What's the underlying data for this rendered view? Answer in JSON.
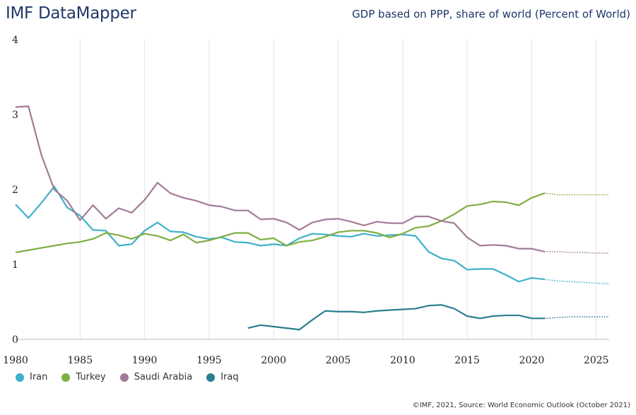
{
  "header": {
    "brand": "IMF DataMapper",
    "title": "GDP based on PPP, share of world (Percent of World)"
  },
  "footer": {
    "credit": "©IMF, 2021, Source: World Economic Outlook (October 2021)"
  },
  "chart_data": {
    "type": "line",
    "title": "GDP based on PPP, share of world (Percent of World)",
    "xlim": [
      1980,
      2026
    ],
    "ylim": [
      0,
      4
    ],
    "x_ticks": [
      1980,
      1985,
      1990,
      1995,
      2000,
      2005,
      2010,
      2015,
      2020,
      2025
    ],
    "y_ticks": [
      0,
      1,
      2,
      3,
      4
    ],
    "grid": "vertical",
    "legend_position": "bottom-left",
    "projection_start": 2021,
    "series": [
      {
        "name": "Iran",
        "color": "#3fb1c9",
        "start": 1980,
        "values": [
          1.8,
          1.62,
          1.82,
          2.04,
          1.76,
          1.65,
          1.46,
          1.45,
          1.25,
          1.27,
          1.45,
          1.56,
          1.44,
          1.43,
          1.37,
          1.34,
          1.36,
          1.3,
          1.29,
          1.25,
          1.27,
          1.25,
          1.35,
          1.41,
          1.4,
          1.38,
          1.37,
          1.41,
          1.38,
          1.39,
          1.4,
          1.38,
          1.17,
          1.08,
          1.05,
          0.93,
          0.94,
          0.94,
          0.86,
          0.77,
          0.82,
          0.8,
          0.78,
          0.77,
          0.76,
          0.75,
          0.74
        ]
      },
      {
        "name": "Turkey",
        "color": "#7fae42",
        "start": 1980,
        "values": [
          1.16,
          1.19,
          1.22,
          1.25,
          1.28,
          1.3,
          1.34,
          1.42,
          1.39,
          1.34,
          1.41,
          1.38,
          1.32,
          1.4,
          1.29,
          1.32,
          1.37,
          1.42,
          1.42,
          1.33,
          1.35,
          1.25,
          1.3,
          1.32,
          1.37,
          1.43,
          1.45,
          1.45,
          1.42,
          1.36,
          1.41,
          1.49,
          1.51,
          1.58,
          1.67,
          1.78,
          1.8,
          1.84,
          1.83,
          1.79,
          1.89,
          1.95,
          1.93,
          1.93,
          1.93,
          1.93,
          1.93
        ]
      },
      {
        "name": "Saudi Arabia",
        "color": "#a27b98",
        "start": 1980,
        "values": [
          3.1,
          3.11,
          2.46,
          2.0,
          1.85,
          1.59,
          1.79,
          1.61,
          1.75,
          1.69,
          1.86,
          2.09,
          1.95,
          1.89,
          1.85,
          1.79,
          1.77,
          1.72,
          1.72,
          1.6,
          1.61,
          1.56,
          1.46,
          1.56,
          1.6,
          1.61,
          1.57,
          1.52,
          1.57,
          1.55,
          1.55,
          1.64,
          1.64,
          1.58,
          1.55,
          1.36,
          1.25,
          1.26,
          1.25,
          1.21,
          1.21,
          1.17,
          1.17,
          1.16,
          1.16,
          1.15,
          1.15
        ]
      },
      {
        "name": "Iraq",
        "color": "#2b7f91",
        "start": 1998,
        "values": [
          0.15,
          0.19,
          0.17,
          0.15,
          0.13,
          0.26,
          0.38,
          0.37,
          0.37,
          0.36,
          0.38,
          0.39,
          0.4,
          0.41,
          0.45,
          0.46,
          0.41,
          0.31,
          0.28,
          0.31,
          0.32,
          0.32,
          0.28,
          0.28,
          0.29,
          0.3,
          0.3,
          0.3,
          0.3
        ]
      }
    ]
  }
}
